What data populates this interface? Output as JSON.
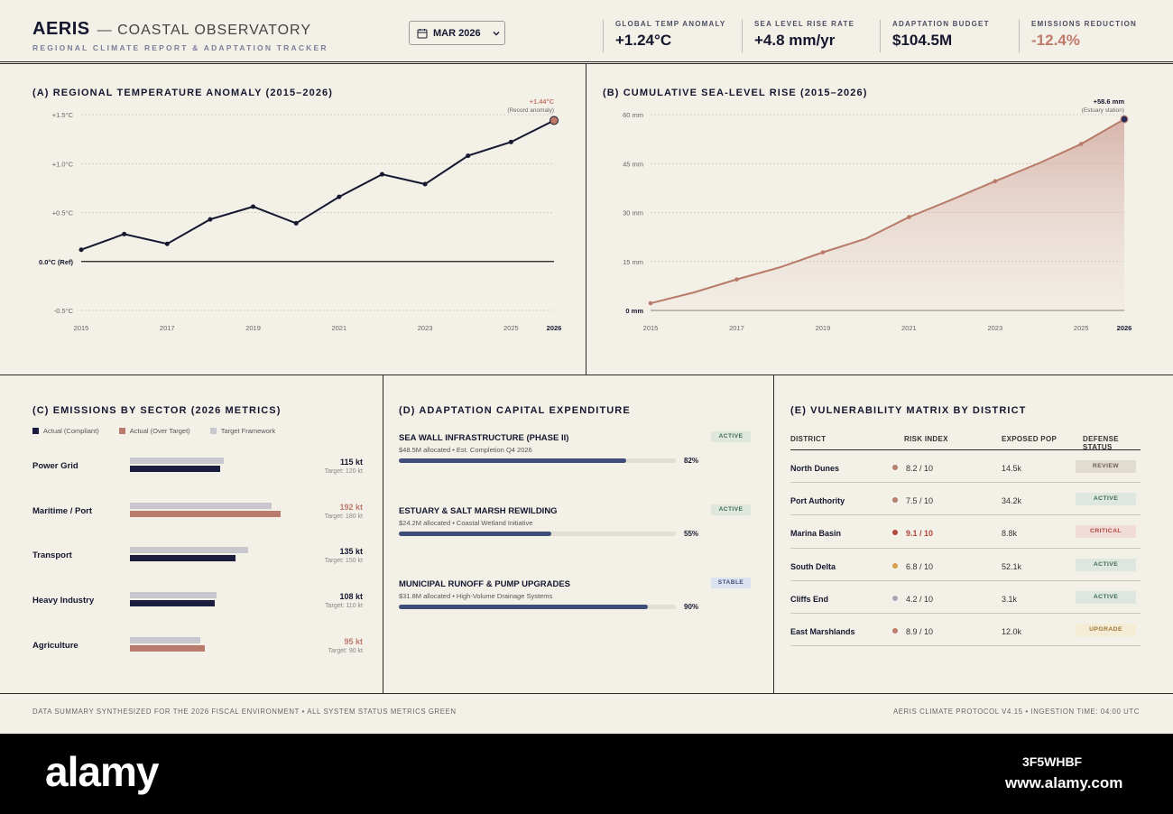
{
  "header": {
    "brand": "AERIS",
    "subtitle": "— COASTAL OBSERVATORY",
    "tagline": "REGIONAL CLIMATE REPORT & ADAPTATION TRACKER",
    "date": "MAR 2026",
    "kpis": [
      {
        "label": "GLOBAL TEMP ANOMALY",
        "value": "+1.24°C"
      },
      {
        "label": "SEA LEVEL RISE RATE",
        "value": "+4.8 mm/yr"
      },
      {
        "label": "ADAPTATION BUDGET",
        "value": "$104.5M"
      },
      {
        "label": "EMISSIONS REDUCTION",
        "value": "-12.4%"
      }
    ]
  },
  "panels": {
    "temp_title": "(A) REGIONAL TEMPERATURE ANOMALY (2015–2026)",
    "sea_title": "(B) CUMULATIVE SEA-LEVEL RISE (2015–2026)",
    "sector_title": "(C) EMISSIONS BY SECTOR (2026 METRICS)",
    "capex_title": "(D) ADAPTATION CAPITAL EXPENDITURE",
    "matrix_title": "(E) VULNERABILITY MATRIX BY DISTRICT"
  },
  "chart_data": [
    {
      "type": "line",
      "title": "(A) REGIONAL TEMPERATURE ANOMALY (2015–2026)",
      "x": [
        2015,
        2016,
        2017,
        2018,
        2019,
        2020,
        2021,
        2022,
        2023,
        2024,
        2025,
        2026
      ],
      "values": [
        0.12,
        0.28,
        0.18,
        0.43,
        0.56,
        0.39,
        0.66,
        0.89,
        0.79,
        1.08,
        1.22,
        1.44
      ],
      "ylim": [
        -0.5,
        1.5
      ],
      "y_ticks": [
        {
          "v": 1.5,
          "label": "+1.5°C"
        },
        {
          "v": 1.0,
          "label": "+1.0°C"
        },
        {
          "v": 0.5,
          "label": "+0.5°C"
        },
        {
          "v": 0.0,
          "label": "0.0°C (Ref)"
        },
        {
          "v": -0.5,
          "label": "-0.5°C"
        }
      ],
      "x_ticks": [
        "2015",
        "2017",
        "2019",
        "2021",
        "2023",
        "2025",
        "2026"
      ],
      "annotation": {
        "value": "+1.44°C",
        "note": "(Record anomaly)"
      },
      "line_color": "#14172e",
      "highlight_color": "#c07a6c"
    },
    {
      "type": "area",
      "title": "(B) CUMULATIVE SEA-LEVEL RISE (2015–2026)",
      "x": [
        2015,
        2016,
        2017,
        2018,
        2019,
        2020,
        2021,
        2022,
        2023,
        2024,
        2025,
        2026
      ],
      "values": [
        2.2,
        5.5,
        9.5,
        13.2,
        17.8,
        22.0,
        28.6,
        34.0,
        39.6,
        45.0,
        51.0,
        58.6
      ],
      "ylim": [
        0,
        60
      ],
      "y_ticks": [
        {
          "v": 60,
          "label": "60 mm"
        },
        {
          "v": 45,
          "label": "45 mm"
        },
        {
          "v": 30,
          "label": "30 mm"
        },
        {
          "v": 15,
          "label": "15 mm"
        },
        {
          "v": 0,
          "label": "0 mm"
        }
      ],
      "x_ticks": [
        "2015",
        "2017",
        "2019",
        "2021",
        "2023",
        "2025",
        "2026"
      ],
      "annotation": {
        "value": "+58.6 mm",
        "note": "(Estuary station)"
      },
      "line_color": "#b87b69"
    },
    {
      "type": "bar",
      "title": "(C) EMISSIONS BY SECTOR (2026 METRICS)",
      "legend": [
        "Actual (Compliant)",
        "Actual (Over Target)",
        "Target Framework"
      ],
      "categories": [
        "Power Grid",
        "Maritime / Port",
        "Transport",
        "Heavy Industry",
        "Agriculture"
      ],
      "series": [
        {
          "name": "Actual",
          "values": [
            115,
            192,
            135,
            108,
            95
          ]
        },
        {
          "name": "Target Framework",
          "values": [
            120,
            180,
            150,
            110,
            90
          ]
        }
      ],
      "value_labels": [
        "115 kt",
        "192 kt",
        "135 kt",
        "108 kt",
        "95 kt"
      ],
      "target_labels": [
        "Target: 120 kt",
        "Target: 180 kt",
        "Target: 150 kt",
        "Target: 110 kt",
        "Target: 90 kt"
      ],
      "xlim": [
        0,
        200
      ],
      "colors": {
        "compliant": "#1b1d3e",
        "over": "#b87b6c",
        "target": "#c9c7ce"
      }
    }
  ],
  "capex": [
    {
      "title": "SEA WALL INFRASTRUCTURE (PHASE II)",
      "sub": "$48.5M allocated • Est. Completion Q4 2026",
      "badge": "ACTIVE",
      "pct": 82,
      "pct_label": "82%"
    },
    {
      "title": "ESTUARY & SALT MARSH REWILDING",
      "sub": "$24.2M allocated • Coastal Wetland Initiative",
      "badge": "ACTIVE",
      "pct": 55,
      "pct_label": "55%"
    },
    {
      "title": "MUNICIPAL RUNOFF & PUMP UPGRADES",
      "sub": "$31.8M allocated • High-Volume Drainage Systems",
      "badge": "STABLE",
      "pct": 90,
      "pct_label": "90%"
    }
  ],
  "matrix": {
    "headers": [
      "DISTRICT",
      "RISK INDEX",
      "EXPOSED POP",
      "DEFENSE STATUS"
    ],
    "rows": [
      {
        "district": "North Dunes",
        "risk": "8.2 / 10",
        "pop": "14.5k",
        "status": "REVIEW",
        "dot": "#b87b6c"
      },
      {
        "district": "Port Authority",
        "risk": "7.5 / 10",
        "pop": "34.2k",
        "status": "ACTIVE",
        "dot": "#b87b6c"
      },
      {
        "district": "Marina Basin",
        "risk": "9.1 / 10",
        "pop": "8.8k",
        "status": "CRITICAL",
        "dot": "#b0473a"
      },
      {
        "district": "South Delta",
        "risk": "6.8 / 10",
        "pop": "52.1k",
        "status": "ACTIVE",
        "dot": "#d4a04a"
      },
      {
        "district": "Cliffs End",
        "risk": "4.2 / 10",
        "pop": "3.1k",
        "status": "ACTIVE",
        "dot": "#a7a4b8"
      },
      {
        "district": "East Marshlands",
        "risk": "8.9 / 10",
        "pop": "12.0k",
        "status": "UPGRADE",
        "dot": "#b87b6c"
      }
    ]
  },
  "footer": {
    "left": "DATA SUMMARY SYNTHESIZED FOR THE 2026 FISCAL ENVIRONMENT • ALL SYSTEM STATUS METRICS GREEN",
    "right": "AERIS CLIMATE PROTOCOL V4.15 • INGESTION TIME: 04:00 UTC"
  },
  "watermark": {
    "logo": "alamy",
    "id": "3F5WHBF",
    "url": "www.alamy.com"
  }
}
